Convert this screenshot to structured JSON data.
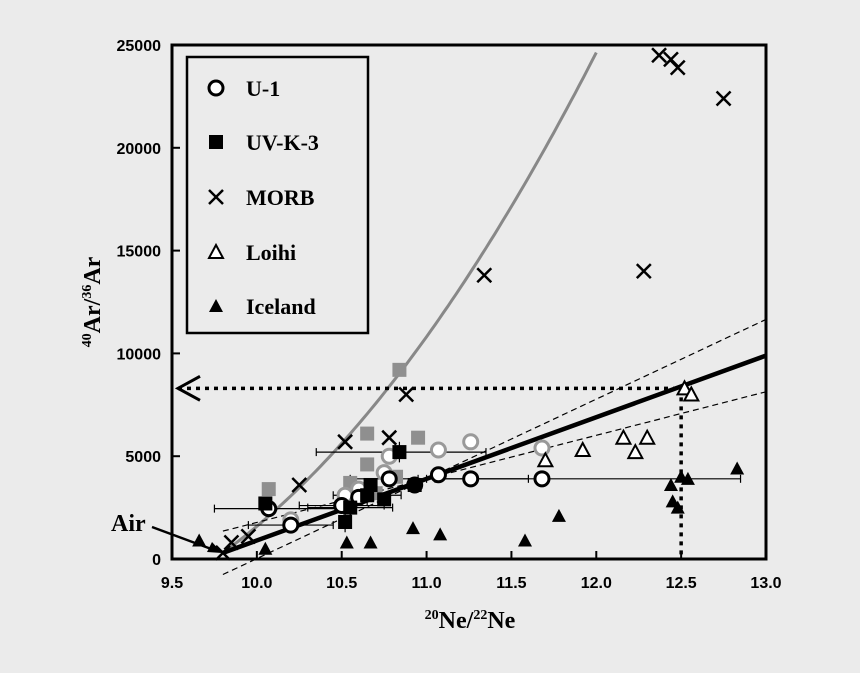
{
  "chart_data": {
    "type": "scatter",
    "xlabel": {
      "pre": "20",
      "a": "Ne/",
      "sup2": "22",
      "b": "Ne"
    },
    "ylabel": {
      "pre": "40",
      "a": "Ar/",
      "sup2": "36",
      "b": "Ar"
    },
    "xlim": [
      9.5,
      13.0
    ],
    "ylim": [
      0,
      25000
    ],
    "xticks": [
      "9.5",
      "10.0",
      "10.5",
      "11.0",
      "11.5",
      "12.0",
      "12.5",
      "13.0"
    ],
    "yticks": [
      "0",
      "5000",
      "10000",
      "15000",
      "20000",
      "25000"
    ],
    "legend_position": "top-left",
    "annotation": {
      "text": "Air",
      "x": 9.8,
      "y": 296
    },
    "reference": {
      "x": 12.5,
      "y": 8300
    },
    "series": [
      {
        "name": "U-1",
        "marker": "open-circle",
        "points": [
          [
            10.07,
            2450
          ],
          [
            10.2,
            1650
          ],
          [
            10.5,
            2600
          ],
          [
            10.6,
            3000
          ],
          [
            10.78,
            3900
          ],
          [
            10.93,
            3600
          ],
          [
            11.07,
            4100
          ],
          [
            11.26,
            3900
          ],
          [
            11.68,
            3900
          ]
        ]
      },
      {
        "name": "UV-K-3",
        "marker": "filled-square",
        "points": [
          [
            10.05,
            2700
          ],
          [
            10.52,
            1800
          ],
          [
            10.55,
            2500
          ],
          [
            10.65,
            3100
          ],
          [
            10.67,
            3600
          ],
          [
            10.75,
            2900
          ],
          [
            10.84,
            5200
          ],
          [
            10.93,
            3600
          ]
        ]
      },
      {
        "name": "MORB",
        "marker": "x",
        "points": [
          [
            9.8,
            300
          ],
          [
            9.85,
            800
          ],
          [
            9.95,
            1100
          ],
          [
            10.25,
            3600
          ],
          [
            10.52,
            5700
          ],
          [
            10.78,
            5900
          ],
          [
            10.88,
            8000
          ],
          [
            11.34,
            13800
          ],
          [
            12.28,
            14000
          ],
          [
            12.37,
            24500
          ],
          [
            12.44,
            24300
          ],
          [
            12.48,
            23900
          ],
          [
            12.75,
            22400
          ]
        ]
      },
      {
        "name": "Loihi",
        "marker": "open-triangle",
        "points": [
          [
            11.7,
            4800
          ],
          [
            11.92,
            5300
          ],
          [
            12.16,
            5900
          ],
          [
            12.23,
            5200
          ],
          [
            12.3,
            5900
          ],
          [
            12.52,
            8300
          ],
          [
            12.56,
            8000
          ]
        ]
      },
      {
        "name": "Iceland",
        "marker": "filled-triangle",
        "points": [
          [
            9.66,
            900
          ],
          [
            10.05,
            500
          ],
          [
            10.53,
            800
          ],
          [
            10.67,
            800
          ],
          [
            10.92,
            1500
          ],
          [
            11.08,
            1200
          ],
          [
            11.58,
            900
          ],
          [
            11.78,
            2100
          ],
          [
            12.44,
            3600
          ],
          [
            12.45,
            2800
          ],
          [
            12.48,
            2500
          ],
          [
            12.5,
            4000
          ],
          [
            12.54,
            3900
          ],
          [
            12.83,
            4400
          ]
        ]
      }
    ],
    "grey_open_circles": [
      [
        10.2,
        1900
      ],
      [
        10.52,
        3100
      ],
      [
        10.6,
        3400
      ],
      [
        10.78,
        5000
      ],
      [
        11.07,
        5300
      ],
      [
        11.26,
        5700
      ],
      [
        11.68,
        5400
      ],
      [
        10.75,
        4200
      ]
    ],
    "grey_squares": [
      [
        10.07,
        3400
      ],
      [
        10.55,
        3700
      ],
      [
        10.65,
        4600
      ],
      [
        10.65,
        6100
      ],
      [
        10.84,
        9200
      ],
      [
        10.95,
        5900
      ],
      [
        10.82,
        4000
      ],
      [
        10.7,
        3200
      ]
    ],
    "error_bars_x": [
      [
        10.07,
        2450,
        9.75,
        10.5
      ],
      [
        10.2,
        1650,
        9.95,
        10.45
      ],
      [
        10.5,
        2600,
        10.25,
        10.75
      ],
      [
        10.78,
        3900,
        10.55,
        11.05
      ],
      [
        11.26,
        3900,
        10.95,
        11.6
      ],
      [
        11.68,
        3900,
        11.0,
        12.85
      ],
      [
        10.84,
        5200,
        10.35,
        11.35
      ],
      [
        10.55,
        2500,
        10.3,
        10.8
      ],
      [
        10.65,
        3100,
        10.45,
        10.85
      ]
    ],
    "error_bars_y": [
      [
        10.52,
        1800,
        1300,
        2300
      ],
      [
        10.84,
        5200,
        4700,
        5700
      ],
      [
        10.65,
        3100,
        2600,
        3600
      ]
    ]
  }
}
